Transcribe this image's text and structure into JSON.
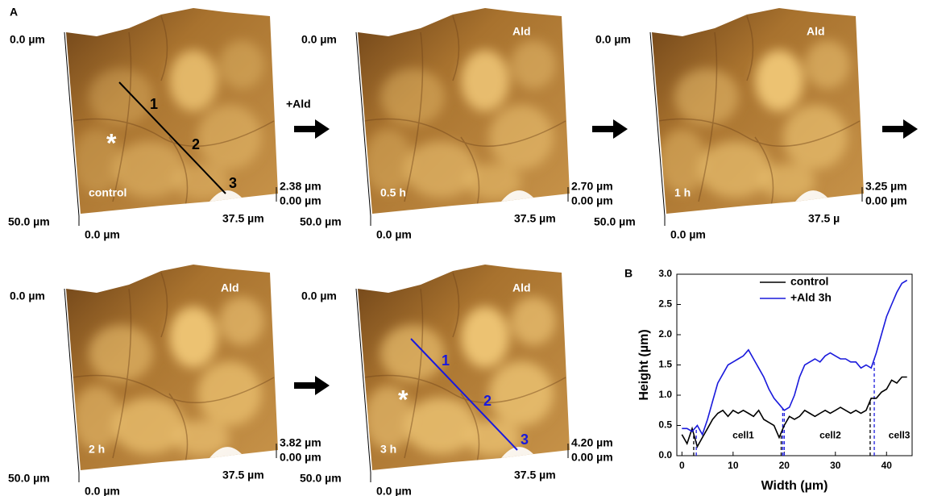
{
  "figure": {
    "label_a": "A",
    "label_b": "B",
    "arrow_label": "+Ald"
  },
  "panels": [
    {
      "y_top": "0.0 µm",
      "y_bottom": "50.0 µm",
      "x_left": "0.0 µm",
      "x_right": "37.5 µm",
      "z_max": "2.38 µm",
      "z_min": "0.00 µm",
      "condition": "control",
      "asterisk": "*",
      "profile_color": "#000000",
      "profile_marks": [
        "1",
        "2",
        "3"
      ]
    },
    {
      "y_top": "0.0 µm",
      "y_bottom": "50.0 µm",
      "x_left": "0.0 µm",
      "x_right": "37.5 µm",
      "z_max": "2.70 µm",
      "z_min": "0.00 µm",
      "condition": "0.5 h",
      "tag": "Ald"
    },
    {
      "y_top": "0.0 µm",
      "y_bottom": "50.0 µm",
      "x_left": "0.0 µm",
      "x_right": "37.5 µ",
      "z_max": "3.25 µm",
      "z_min": "0.00 µm",
      "condition": "1 h",
      "tag": "Ald"
    },
    {
      "y_top": "0.0 µm",
      "y_bottom": "50.0 µm",
      "x_left": "0.0 µm",
      "x_right": "37.5 µm",
      "z_max": "3.82 µm",
      "z_min": "0.00 µm",
      "condition": "2 h",
      "tag": "Ald"
    },
    {
      "y_top": "0.0 µm",
      "y_bottom": "50.0 µm",
      "x_left": "0.0 µm",
      "x_right": "37.5 µm",
      "z_max": "4.20 µm",
      "z_min": "0.00 µm",
      "condition": "3 h",
      "tag": "Ald",
      "asterisk": "*",
      "profile_color": "#1a1adc",
      "profile_marks": [
        "1",
        "2",
        "3"
      ]
    }
  ],
  "chart_data": {
    "type": "line",
    "x_label": "Width (µm)",
    "y_label": "Height (µm)",
    "legend": "top",
    "x": [
      0,
      1,
      2,
      3,
      4,
      5,
      6,
      7,
      8,
      9,
      10,
      11,
      12,
      13,
      14,
      15,
      16,
      17,
      18,
      19,
      20,
      21,
      22,
      23,
      24,
      25,
      26,
      27,
      28,
      29,
      30,
      31,
      32,
      33,
      34,
      35,
      36,
      37,
      38,
      39,
      40,
      41,
      42,
      43,
      44
    ],
    "series": [
      {
        "name": "control",
        "color": "#000000",
        "values": [
          0.35,
          0.2,
          0.45,
          0.15,
          0.3,
          0.45,
          0.6,
          0.7,
          0.75,
          0.65,
          0.75,
          0.7,
          0.75,
          0.7,
          0.65,
          0.75,
          0.6,
          0.55,
          0.5,
          0.3,
          0.5,
          0.65,
          0.6,
          0.65,
          0.75,
          0.7,
          0.65,
          0.7,
          0.75,
          0.7,
          0.75,
          0.8,
          0.75,
          0.7,
          0.75,
          0.7,
          0.75,
          0.95,
          0.95,
          1.05,
          1.1,
          1.25,
          1.2,
          1.3,
          1.3
        ]
      },
      {
        "name": "+Ald 3h",
        "color": "#1a1adc",
        "values": [
          0.45,
          0.45,
          0.4,
          0.5,
          0.35,
          0.6,
          0.9,
          1.2,
          1.35,
          1.5,
          1.55,
          1.6,
          1.65,
          1.75,
          1.6,
          1.45,
          1.3,
          1.1,
          0.95,
          0.85,
          0.75,
          0.8,
          1.0,
          1.3,
          1.5,
          1.55,
          1.6,
          1.55,
          1.65,
          1.7,
          1.65,
          1.6,
          1.6,
          1.55,
          1.55,
          1.45,
          1.5,
          1.45,
          1.7,
          2.0,
          2.3,
          2.5,
          2.7,
          2.85,
          2.9
        ]
      }
    ],
    "vlines": [
      {
        "x": 2.3,
        "color": "#000000"
      },
      {
        "x": 2.8,
        "color": "#1a1adc"
      },
      {
        "x": 19.4,
        "color": "#000000"
      },
      {
        "x": 19.7,
        "color": "#1a1adc"
      },
      {
        "x": 20.0,
        "color": "#1a1adc"
      },
      {
        "x": 36.8,
        "color": "#000000"
      },
      {
        "x": 37.6,
        "color": "#1a1adc"
      }
    ],
    "annotations": [
      {
        "text": "cell1",
        "x": 12,
        "y": 0.33
      },
      {
        "text": "cell2",
        "x": 29,
        "y": 0.33
      },
      {
        "text": "cell3",
        "x": 42.5,
        "y": 0.33
      }
    ],
    "xlim": [
      -1,
      45
    ],
    "ylim": [
      0,
      3
    ],
    "xticks": [
      0,
      10,
      20,
      30,
      40
    ],
    "yticks": [
      {
        "value": 0,
        "label": "0.0"
      },
      {
        "value": 0.5,
        "label": "0.5"
      },
      {
        "value": 1,
        "label": "1.0"
      },
      {
        "value": 1.5,
        "label": "1.5"
      },
      {
        "value": 2,
        "label": "2.0"
      },
      {
        "value": 2.5,
        "label": "2.5"
      },
      {
        "value": 3,
        "label": "3.0"
      }
    ]
  }
}
